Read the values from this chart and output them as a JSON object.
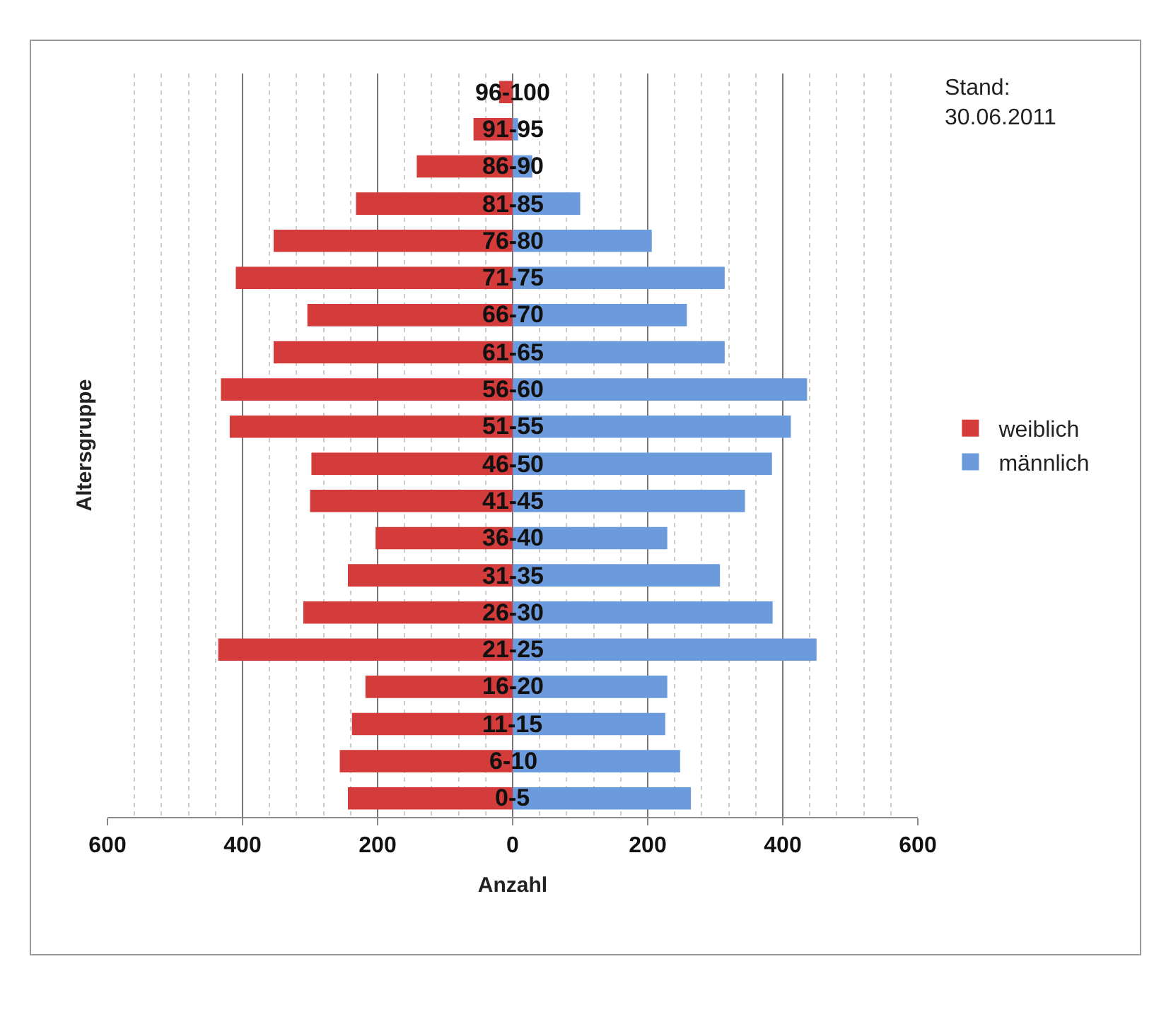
{
  "chart_data": {
    "type": "bar",
    "orientation": "horizontal",
    "ylabel": "Altersgruppe",
    "xlabel": "Anzahl",
    "categories": [
      "96-100",
      "91-95",
      "86-90",
      "81-85",
      "76-80",
      "71-75",
      "66-70",
      "61-65",
      "56-60",
      "51-55",
      "46-50",
      "41-45",
      "36-40",
      "31-35",
      "26-30",
      "21-25",
      "16-20",
      "11-15",
      "6-10",
      "0-5"
    ],
    "series": [
      {
        "name": "weiblich",
        "color": "#d43b3b",
        "values": [
          -20,
          -58,
          -142,
          -232,
          -354,
          -410,
          -304,
          -354,
          -432,
          -419,
          -298,
          -300,
          -203,
          -244,
          -310,
          -436,
          -218,
          -238,
          -256,
          -244
        ]
      },
      {
        "name": "männlich",
        "color": "#6b9bdc",
        "values": [
          0,
          8,
          29,
          100,
          206,
          314,
          258,
          314,
          436,
          412,
          384,
          344,
          229,
          307,
          385,
          450,
          229,
          226,
          248,
          264
        ]
      }
    ],
    "xlim": [
      -600,
      600
    ],
    "xticks": [
      {
        "value": -600,
        "label": "600"
      },
      {
        "value": -400,
        "label": "400"
      },
      {
        "value": -200,
        "label": "200"
      },
      0,
      200,
      400,
      600
    ],
    "grid": "x",
    "legend": "right",
    "stacked": true,
    "annotations": [
      "Stand:\n30.06.2011"
    ]
  }
}
